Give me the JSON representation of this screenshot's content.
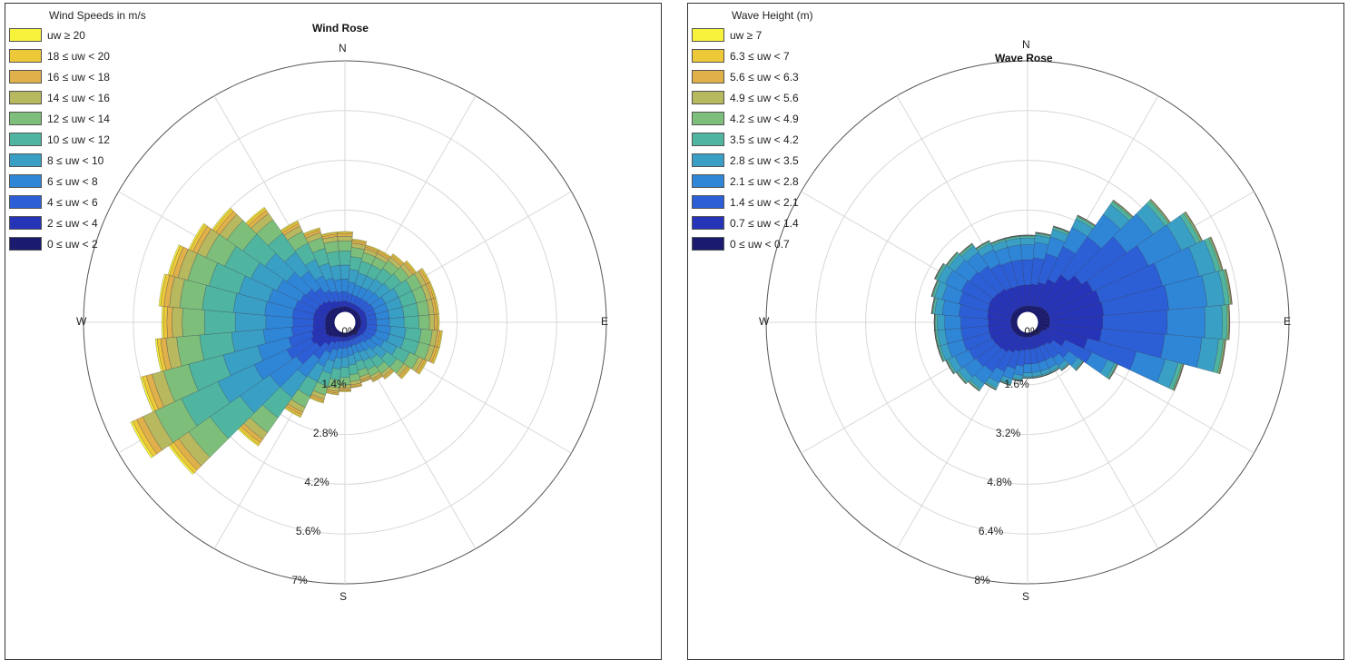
{
  "chart_data": [
    {
      "type": "polar-bar",
      "title": "Wind Rose",
      "legend_title": "Wind Speeds in m/s",
      "legend_placement": "top-left",
      "compass": {
        "n": "N",
        "e": "E",
        "s": "S",
        "w": "W"
      },
      "radial_ticks": [
        "0%",
        "1.4%",
        "2.8%",
        "4.2%",
        "5.6%",
        "7%"
      ],
      "radial_values": [
        0,
        1.4,
        2.8,
        4.2,
        5.6,
        7
      ],
      "rmax": 7,
      "grid": true,
      "bins": [
        {
          "label": "0 ≤ uw < 2",
          "color": "#1a1a6e"
        },
        {
          "label": "2 ≤ uw < 4",
          "color": "#2634b8"
        },
        {
          "label": "4 ≤ uw < 6",
          "color": "#2c5fd6"
        },
        {
          "label": "6 ≤ uw < 8",
          "color": "#2f86d6"
        },
        {
          "label": "8 ≤ uw < 10",
          "color": "#3a9fc4"
        },
        {
          "label": "10 ≤ uw < 12",
          "color": "#4fb5a1"
        },
        {
          "label": "12 ≤ uw < 14",
          "color": "#7dbf7a"
        },
        {
          "label": "14 ≤ uw < 16",
          "color": "#b8b85e"
        },
        {
          "label": "16 ≤ uw < 18",
          "color": "#e0b04a"
        },
        {
          "label": "18 ≤ uw < 20",
          "color": "#edc838"
        },
        {
          "label": "uw ≥ 20",
          "color": "#f7f23a"
        }
      ],
      "directions_deg": [
        0,
        10,
        20,
        30,
        40,
        50,
        60,
        70,
        80,
        90,
        100,
        110,
        120,
        130,
        140,
        150,
        160,
        170,
        180,
        190,
        200,
        210,
        220,
        230,
        240,
        250,
        260,
        270,
        280,
        290,
        300,
        310,
        320,
        330,
        340,
        350
      ],
      "totals_percent": [
        2.2,
        2.0,
        1.9,
        1.9,
        2.0,
        2.1,
        2.3,
        2.3,
        2.3,
        2.3,
        2.4,
        2.4,
        2.2,
        1.9,
        1.6,
        1.5,
        1.4,
        1.5,
        1.6,
        1.7,
        2.0,
        2.6,
        3.9,
        5.7,
        6.3,
        5.6,
        5.0,
        4.8,
        4.9,
        4.8,
        4.5,
        4.2,
        3.6,
        2.8,
        2.4,
        2.2
      ],
      "bin_fractions": [
        0.04,
        0.07,
        0.12,
        0.16,
        0.18,
        0.18,
        0.13,
        0.06,
        0.03,
        0.02,
        0.01
      ]
    },
    {
      "type": "polar-bar",
      "title": "Wave Rose",
      "legend_title": "Wave Height (m)",
      "legend_placement": "top-left",
      "compass": {
        "n": "N",
        "e": "E",
        "s": "S",
        "w": "W"
      },
      "radial_ticks": [
        "0%",
        "1.6%",
        "3.2%",
        "4.8%",
        "6.4%",
        "8%"
      ],
      "radial_values": [
        0,
        1.6,
        3.2,
        4.8,
        6.4,
        8
      ],
      "rmax": 8,
      "grid": true,
      "bins": [
        {
          "label": "0 ≤ uw < 0.7",
          "color": "#1a1a6e"
        },
        {
          "label": "0.7 ≤ uw < 1.4",
          "color": "#2634b8"
        },
        {
          "label": "1.4 ≤ uw < 2.1",
          "color": "#2c5fd6"
        },
        {
          "label": "2.1 ≤ uw < 2.8",
          "color": "#2f86d6"
        },
        {
          "label": "2.8 ≤ uw < 3.5",
          "color": "#3a9fc4"
        },
        {
          "label": "3.5 ≤ uw < 4.2",
          "color": "#4fb5a1"
        },
        {
          "label": "4.2 ≤ uw < 4.9",
          "color": "#7dbf7a"
        },
        {
          "label": "4.9 ≤ uw < 5.6",
          "color": "#b8b85e"
        },
        {
          "label": "5.6 ≤ uw < 6.3",
          "color": "#e0b04a"
        },
        {
          "label": "6.3 ≤ uw < 7",
          "color": "#edc838"
        },
        {
          "label": "uw ≥ 7",
          "color": "#f7f23a"
        }
      ],
      "directions_deg": [
        0,
        10,
        20,
        30,
        40,
        50,
        60,
        70,
        80,
        90,
        100,
        110,
        120,
        130,
        140,
        150,
        160,
        170,
        180,
        190,
        200,
        210,
        220,
        230,
        240,
        250,
        260,
        270,
        280,
        290,
        300,
        310,
        320,
        330,
        340,
        350
      ],
      "totals_percent": [
        2.4,
        2.5,
        2.8,
        3.4,
        4.4,
        5.2,
        5.8,
        6.1,
        6.2,
        6.1,
        6.0,
        4.8,
        2.8,
        1.8,
        1.5,
        1.4,
        1.4,
        1.4,
        1.4,
        1.5,
        1.7,
        2.0,
        2.3,
        2.4,
        2.5,
        2.6,
        2.6,
        2.6,
        2.7,
        2.8,
        2.9,
        2.8,
        2.7,
        2.5,
        2.4,
        2.4
      ],
      "bin_fractions": [
        0.05,
        0.28,
        0.34,
        0.2,
        0.09,
        0.025,
        0.008,
        0.004,
        0.002,
        0.001,
        0.0
      ]
    }
  ]
}
